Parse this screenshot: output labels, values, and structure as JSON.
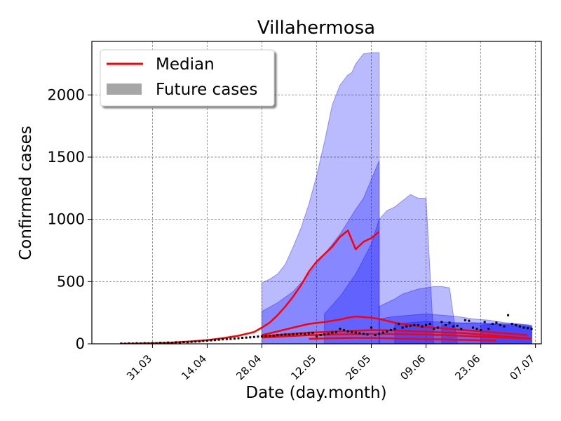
{
  "chart_data": {
    "type": "line",
    "title": "Villahermosa",
    "xlabel": "Date (day.month)",
    "ylabel": "Confirmed cases",
    "y_ticks": [
      0,
      500,
      1000,
      1500,
      2000
    ],
    "ylim": [
      0,
      2430
    ],
    "x_tick_labels": [
      "31.03",
      "14.04",
      "28.04",
      "12.05",
      "26.05",
      "09.06",
      "23.06",
      "07.07"
    ],
    "x_tick_days": [
      0,
      14,
      28,
      42,
      56,
      70,
      84,
      98
    ],
    "xlim": [
      -15.5,
      99.5
    ],
    "x_unit_note": "",
    "grid": true,
    "legend": {
      "position": "top-left",
      "entries": [
        {
          "label": "Median",
          "color": "#ff0000",
          "kind": "line"
        },
        {
          "label": "Future cases",
          "color": "#a6a6a6",
          "kind": "patch"
        }
      ]
    },
    "colors": {
      "median": "#ff0000",
      "band": "#0000ff",
      "observed": "#000000"
    },
    "observed": {
      "name": "",
      "x": [
        -8,
        -7,
        -6,
        -5,
        -4,
        -3,
        -2,
        -1,
        0,
        1,
        2,
        3,
        4,
        5,
        6,
        7,
        8,
        9,
        10,
        11,
        12,
        13,
        14,
        15,
        16,
        17,
        18,
        19,
        20,
        21,
        22,
        23,
        24,
        25,
        26,
        27,
        28,
        29,
        30,
        31,
        32,
        33,
        34,
        35,
        36,
        37,
        38,
        39,
        40,
        41,
        42,
        43,
        44,
        45,
        46,
        47,
        48,
        49,
        50,
        51,
        52,
        53,
        54,
        55,
        56,
        57,
        58,
        59,
        60,
        61,
        62,
        63,
        64,
        65,
        66,
        67,
        68,
        69,
        70,
        71,
        72,
        73,
        74,
        75,
        76,
        77,
        78,
        79,
        80,
        81,
        82,
        83,
        84,
        85,
        86,
        87,
        88,
        89,
        90,
        91,
        92,
        93,
        94,
        95,
        96,
        97
      ],
      "y": [
        2,
        1,
        3,
        2,
        4,
        3,
        5,
        4,
        6,
        5,
        8,
        7,
        10,
        9,
        12,
        11,
        14,
        13,
        16,
        18,
        20,
        24,
        26,
        28,
        30,
        33,
        36,
        38,
        40,
        42,
        45,
        48,
        50,
        52,
        55,
        58,
        60,
        62,
        65,
        66,
        70,
        72,
        75,
        74,
        78,
        80,
        82,
        79,
        85,
        88,
        60,
        70,
        75,
        80,
        90,
        95,
        120,
        110,
        100,
        95,
        90,
        85,
        80,
        75,
        130,
        70,
        80,
        90,
        100,
        110,
        120,
        160,
        130,
        140,
        145,
        150,
        150,
        140,
        150,
        160,
        120,
        130,
        175,
        150,
        170,
        140,
        145,
        120,
        190,
        185,
        130,
        120,
        110,
        175,
        120,
        160,
        170,
        150,
        140,
        230,
        160,
        150,
        140,
        130,
        125,
        120
      ]
    },
    "median_lines": [
      {
        "x": [
          -8,
          0,
          5,
          10,
          14,
          18,
          22,
          26,
          28,
          30,
          32,
          34,
          36,
          38,
          40,
          42,
          44,
          46,
          48,
          50,
          52,
          54,
          56,
          58
        ],
        "y": [
          0,
          5,
          10,
          20,
          30,
          45,
          65,
          95,
          130,
          170,
          230,
          300,
          380,
          470,
          580,
          660,
          720,
          780,
          860,
          910,
          760,
          820,
          850,
          900
        ]
      },
      {
        "x": [
          28,
          32,
          36,
          40,
          44,
          48,
          50,
          52,
          54,
          56,
          58,
          60,
          62,
          64,
          66,
          68,
          70,
          72,
          74,
          76,
          78,
          80,
          82,
          84,
          86,
          88,
          90,
          92,
          94,
          96
        ],
        "y": [
          70,
          100,
          130,
          160,
          175,
          195,
          210,
          220,
          215,
          210,
          200,
          185,
          170,
          160,
          150,
          140,
          135,
          130,
          125,
          120,
          115,
          110,
          105,
          100,
          95,
          90,
          85,
          80,
          75,
          70
        ]
      },
      {
        "x": [
          28,
          32,
          36,
          40,
          44,
          48,
          52,
          56,
          60,
          64,
          68,
          72,
          76,
          80,
          84,
          88,
          92,
          96,
          97
        ],
        "y": [
          60,
          70,
          80,
          90,
          95,
          100,
          105,
          110,
          108,
          105,
          100,
          95,
          90,
          85,
          75,
          65,
          55,
          45,
          40
        ]
      },
      {
        "x": [
          28,
          34,
          40,
          46,
          52,
          58,
          64,
          70,
          76,
          82,
          88,
          94,
          97
        ],
        "y": [
          50,
          60,
          70,
          75,
          78,
          80,
          78,
          74,
          68,
          60,
          52,
          45,
          42
        ]
      },
      {
        "x": [
          40,
          46,
          52,
          58,
          64,
          70,
          76,
          82,
          88
        ],
        "y": [
          40,
          45,
          48,
          46,
          42,
          38,
          34,
          30,
          26
        ]
      }
    ],
    "bands": [
      {
        "x": [
          28,
          30,
          32,
          34,
          36,
          38,
          40,
          42,
          44,
          46,
          48,
          50,
          51,
          52,
          54,
          56,
          58
        ],
        "lower": [
          0,
          0,
          0,
          0,
          0,
          0,
          0,
          0,
          0,
          0,
          0,
          0,
          0,
          0,
          0,
          0,
          0
        ],
        "upper": [
          490,
          520,
          560,
          640,
          780,
          930,
          1120,
          1350,
          1620,
          1920,
          2080,
          2160,
          2180,
          2250,
          2330,
          2340,
          2340
        ],
        "opacity": 0.27
      },
      {
        "x": [
          28,
          32,
          36,
          40,
          44,
          48,
          50,
          52,
          54,
          56,
          58
        ],
        "lower": [
          0,
          0,
          0,
          0,
          0,
          0,
          0,
          0,
          0,
          0,
          0
        ],
        "upper": [
          260,
          330,
          420,
          560,
          720,
          880,
          980,
          1080,
          1170,
          1320,
          1470
        ],
        "opacity": 0.27
      },
      {
        "x": [
          44,
          48,
          52,
          56,
          58,
          60,
          62,
          64,
          66,
          68,
          70,
          72,
          74,
          76,
          78,
          80,
          82,
          84,
          86,
          88,
          90,
          92,
          94,
          96,
          97
        ],
        "lower": [
          0,
          0,
          0,
          0,
          0,
          0,
          0,
          0,
          0,
          0,
          0,
          0,
          0,
          0,
          0,
          0,
          0,
          0,
          0,
          0,
          0,
          0,
          0,
          0,
          0
        ],
        "upper": [
          240,
          380,
          560,
          800,
          1000,
          1070,
          1100,
          1150,
          1200,
          1170,
          1170,
          0,
          0,
          0,
          0,
          0,
          0,
          0,
          0,
          0,
          0,
          0,
          0,
          0,
          0
        ],
        "opacity": 0.27
      },
      {
        "x": [
          58,
          60,
          62,
          64,
          66,
          68,
          70,
          72,
          74,
          76,
          78,
          80,
          82
        ],
        "lower": [
          0,
          0,
          0,
          0,
          0,
          0,
          0,
          0,
          0,
          0,
          0,
          0,
          0
        ],
        "upper": [
          300,
          330,
          360,
          400,
          420,
          440,
          450,
          460,
          460,
          450,
          0,
          0,
          0
        ],
        "opacity": 0.27
      },
      {
        "x": [
          58,
          62,
          66,
          70,
          74,
          78,
          82,
          86,
          90,
          94,
          97
        ],
        "lower": [
          0,
          0,
          0,
          0,
          0,
          0,
          0,
          0,
          0,
          0,
          0
        ],
        "upper": [
          200,
          220,
          230,
          240,
          230,
          220,
          200,
          190,
          170,
          160,
          150
        ],
        "opacity": 0.27
      },
      {
        "x": [
          62,
          66,
          70,
          74,
          78,
          82,
          86,
          90,
          94,
          97
        ],
        "lower": [
          0,
          0,
          0,
          0,
          0,
          0,
          0,
          0,
          0,
          0
        ],
        "upper": [
          160,
          170,
          180,
          175,
          170,
          165,
          160,
          150,
          140,
          135
        ],
        "opacity": 0.27
      },
      {
        "x": [
          74,
          78,
          82,
          86,
          90,
          94,
          97
        ],
        "lower": [
          0,
          0,
          0,
          0,
          0,
          0,
          0
        ],
        "upper": [
          150,
          165,
          170,
          165,
          160,
          150,
          140
        ],
        "opacity": 0.27
      },
      {
        "x": [
          84,
          88,
          92,
          96,
          97
        ],
        "lower": [
          0,
          0,
          0,
          0,
          0
        ],
        "upper": [
          150,
          160,
          160,
          150,
          140
        ],
        "opacity": 0.27
      }
    ]
  }
}
